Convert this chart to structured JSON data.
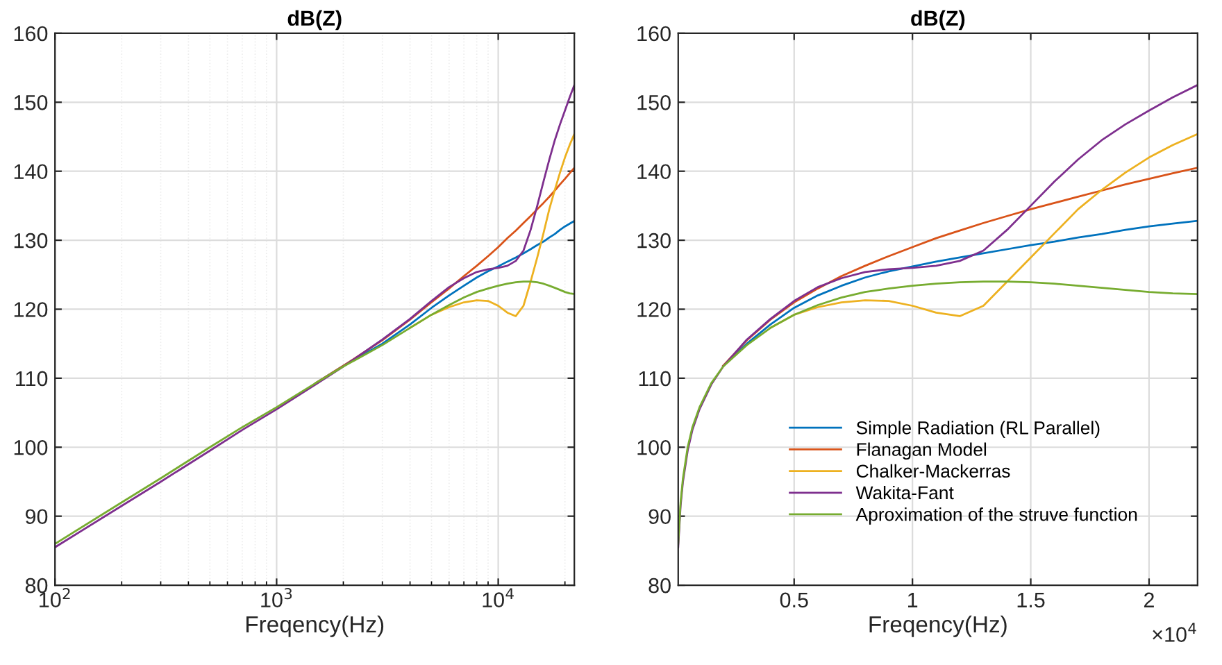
{
  "chart_data": [
    {
      "type": "line",
      "title": "dB(Z)",
      "xlabel": "Freqency(Hz)",
      "log": "x",
      "grid": true,
      "legend": false,
      "x": [
        100,
        200,
        300,
        500,
        700,
        1000,
        1500,
        2000,
        3000,
        4000,
        5000,
        6000,
        7000,
        8000,
        9000,
        10000,
        11000,
        12000,
        13000,
        14000,
        15000,
        16000,
        17000,
        18000,
        19000,
        20000,
        21000,
        22050
      ],
      "xlim": [
        100,
        22050
      ],
      "xticks": [
        {
          "value": 100,
          "label": "10$^{2}$"
        },
        {
          "value": 1000,
          "label": "10$^{3}$"
        },
        {
          "value": 10000,
          "label": "10$^{4}$"
        }
      ],
      "ylim": [
        80,
        160
      ],
      "yticks": [
        80,
        90,
        100,
        110,
        120,
        130,
        140,
        150,
        160
      ],
      "series": [
        {
          "color": "#0072bd",
          "values": [
            null,
            null,
            null,
            null,
            null,
            null,
            109.3,
            111.8,
            115,
            117.8,
            120.2,
            122,
            123.4,
            124.6,
            125.5,
            126.2,
            126.9,
            127.5,
            128.1,
            128.7,
            129.3,
            129.8,
            130.4,
            130.9,
            131.5,
            132,
            132.4,
            132.8
          ]
        },
        {
          "color": "#d95319",
          "values": [
            null,
            null,
            null,
            null,
            null,
            null,
            109.3,
            111.8,
            115.5,
            118.5,
            121,
            123,
            124.8,
            126.3,
            127.7,
            129,
            130.3,
            131.4,
            132.5,
            133.5,
            134.5,
            135.4,
            136.3,
            137.2,
            138.1,
            138.9,
            139.7,
            140.5
          ]
        },
        {
          "color": "#edb120",
          "values": [
            null,
            null,
            null,
            null,
            null,
            null,
            null,
            null,
            null,
            117.3,
            119.2,
            120.3,
            121,
            121.3,
            121.2,
            120.5,
            119.5,
            119,
            120.5,
            124,
            127.5,
            131,
            134.5,
            137.3,
            139.8,
            142,
            143.8,
            145.4
          ]
        },
        {
          "color": "#7e2f8e",
          "values": [
            85.5,
            91.5,
            95,
            99.5,
            102.5,
            105.5,
            109.1,
            111.7,
            115.6,
            118.6,
            121.2,
            123.2,
            124.5,
            125.4,
            125.8,
            126,
            126.3,
            127,
            128.5,
            131.5,
            135,
            138.5,
            141.7,
            144.5,
            146.8,
            148.8,
            150.7,
            152.5
          ]
        },
        {
          "color": "#77ac30",
          "values": [
            86,
            92,
            95.5,
            100,
            102.9,
            105.8,
            109.3,
            111.7,
            114.8,
            117.3,
            119.2,
            120.6,
            121.7,
            122.5,
            123,
            123.4,
            123.7,
            123.9,
            124,
            124,
            123.9,
            123.7,
            123.4,
            123.1,
            122.8,
            122.5,
            122.3,
            122.2
          ]
        }
      ]
    },
    {
      "type": "line",
      "title": "dB(Z)",
      "xlabel": "Freqency(Hz)",
      "grid": true,
      "legend": "bottom",
      "annotations": [
        "×10$^{4}$"
      ],
      "x": [
        0.01,
        0.02,
        0.03,
        0.05,
        0.07,
        0.1,
        0.15,
        0.2,
        0.3,
        0.4,
        0.5,
        0.6,
        0.7,
        0.8,
        0.9,
        1.0,
        1.1,
        1.2,
        1.3,
        1.4,
        1.5,
        1.6,
        1.7,
        1.8,
        1.9,
        2.0,
        2.1,
        2.205
      ],
      "xlim": [
        0.01,
        2.205
      ],
      "xticks": [
        0.5,
        1,
        1.5,
        2
      ],
      "ylim": [
        80,
        160
      ],
      "yticks": [
        80,
        90,
        100,
        110,
        120,
        130,
        140,
        150,
        160
      ],
      "series": [
        {
          "name": "Simple Radiation (RL Parallel)",
          "color": "#0072bd",
          "values": [
            null,
            null,
            null,
            null,
            null,
            null,
            null,
            111.8,
            115,
            117.8,
            120.2,
            122,
            123.4,
            124.6,
            125.5,
            126.2,
            126.9,
            127.5,
            128.1,
            128.7,
            129.3,
            129.8,
            130.4,
            130.9,
            131.5,
            132,
            132.4,
            132.8
          ]
        },
        {
          "name": "Flanagan Model",
          "color": "#d95319",
          "values": [
            null,
            null,
            null,
            null,
            null,
            null,
            null,
            111.8,
            115.5,
            118.5,
            121,
            123,
            124.8,
            126.3,
            127.7,
            129,
            130.3,
            131.4,
            132.5,
            133.5,
            134.5,
            135.4,
            136.3,
            137.2,
            138.1,
            138.9,
            139.7,
            140.5
          ]
        },
        {
          "name": "Chalker-Mackerras",
          "color": "#edb120",
          "values": [
            null,
            null,
            null,
            null,
            null,
            null,
            null,
            null,
            null,
            117.3,
            119.2,
            120.3,
            121,
            121.3,
            121.2,
            120.5,
            119.5,
            119,
            120.5,
            124,
            127.5,
            131,
            134.5,
            137.3,
            139.8,
            142,
            143.8,
            145.4
          ]
        },
        {
          "name": "Wakita-Fant",
          "color": "#7e2f8e",
          "values": [
            85.5,
            91.5,
            95,
            99.5,
            102.5,
            105.5,
            109.1,
            111.7,
            115.6,
            118.6,
            121.2,
            123.2,
            124.5,
            125.4,
            125.8,
            126,
            126.3,
            127,
            128.5,
            131.5,
            135,
            138.5,
            141.7,
            144.5,
            146.8,
            148.8,
            150.7,
            152.5
          ]
        },
        {
          "name": "Aproximation of the struve function",
          "color": "#77ac30",
          "values": [
            86,
            92,
            95.5,
            100,
            102.9,
            105.8,
            109.3,
            111.7,
            114.8,
            117.3,
            119.2,
            120.6,
            121.7,
            122.5,
            123,
            123.4,
            123.7,
            123.9,
            124,
            124,
            123.9,
            123.7,
            123.4,
            123.1,
            122.8,
            122.5,
            122.3,
            122.2
          ]
        }
      ]
    }
  ]
}
